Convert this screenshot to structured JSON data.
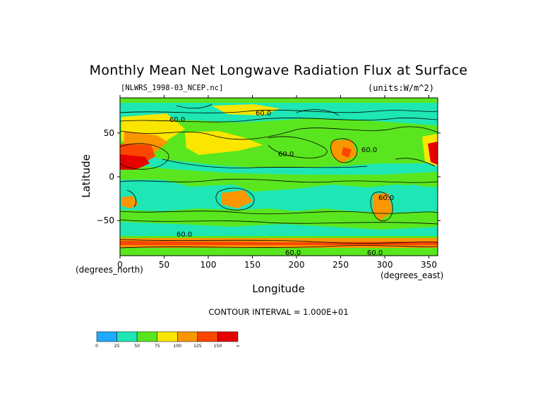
{
  "chart_data": {
    "type": "heatmap",
    "title": "Monthly Mean Net Longwave Radiation Flux at Surface",
    "source_label": "[NLWRS_1998-03_NCEP.nc]",
    "units_label": "(units:W/m^2)",
    "xlabel": "Longitude",
    "ylabel": "Latitude",
    "x_unit_note": "(degrees_east)",
    "y_unit_note": "(degrees_north)",
    "xlim": [
      0,
      360
    ],
    "ylim": [
      -90,
      90
    ],
    "x_ticks": [
      0,
      50,
      100,
      150,
      200,
      250,
      300,
      350
    ],
    "y_ticks": [
      -50,
      0,
      50
    ],
    "contour_interval": "CONTOUR INTERVAL = 1.000E+01",
    "contour_labels": [
      "60.0",
      "60.0",
      "60.0",
      "60.0",
      "60.0",
      "60.0",
      "60.0",
      "60.0"
    ],
    "colorbar": {
      "ticks": [
        "0",
        "25",
        "50",
        "75",
        "100",
        "125",
        "150",
        "∞"
      ],
      "colors": [
        "#1eaaff",
        "#1ee6b4",
        "#5ae61e",
        "#fae600",
        "#fa9600",
        "#fa4600",
        "#e60000"
      ]
    }
  }
}
